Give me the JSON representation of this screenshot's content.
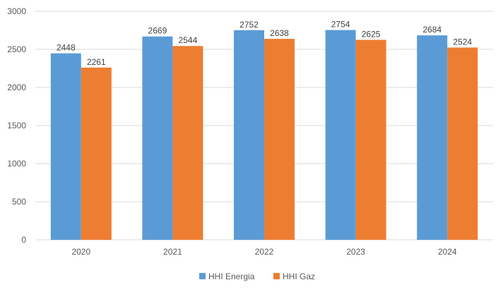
{
  "chart_data": {
    "type": "bar",
    "title": "",
    "xlabel": "",
    "ylabel": "",
    "categories": [
      "2020",
      "2021",
      "2022",
      "2023",
      "2024"
    ],
    "series": [
      {
        "name": "HHI Energia",
        "color": "#5b9bd5",
        "values": [
          2448,
          2669,
          2752,
          2754,
          2684
        ]
      },
      {
        "name": "HHI Gaz",
        "color": "#ed7d31",
        "values": [
          2261,
          2544,
          2638,
          2625,
          2524
        ]
      }
    ],
    "ylim": [
      0,
      3000
    ],
    "yticks": [
      "0",
      "500",
      "1000",
      "1500",
      "2000",
      "2500",
      "3000"
    ],
    "grid": true,
    "legend_position": "bottom",
    "data_labels": true
  }
}
